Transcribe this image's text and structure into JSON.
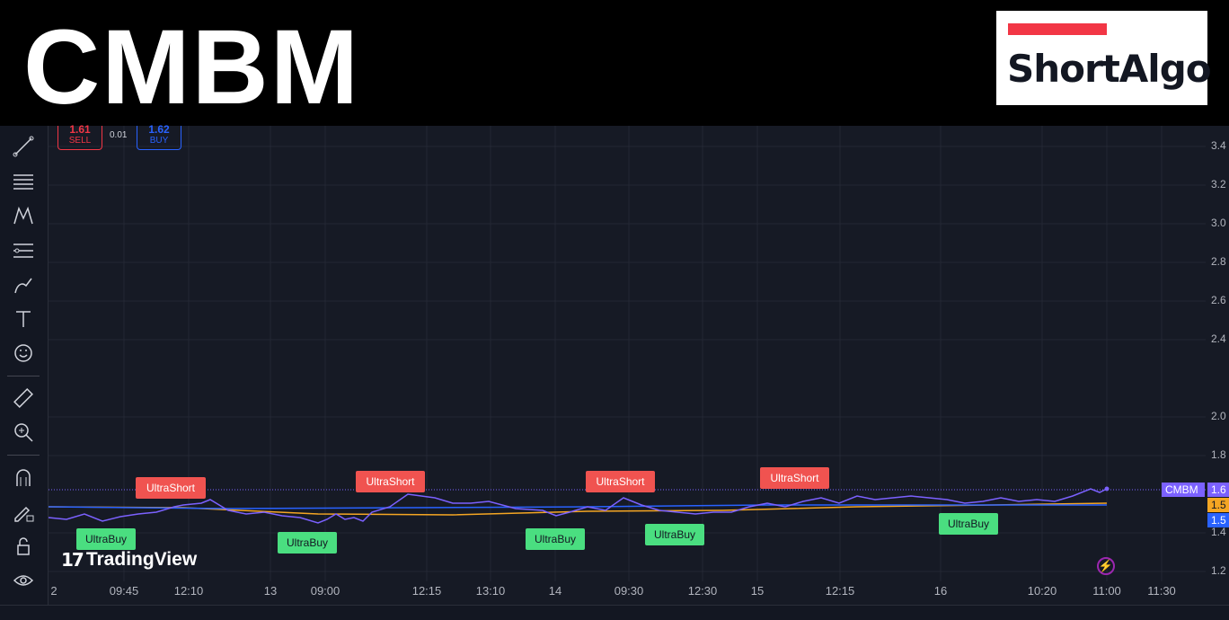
{
  "header": {
    "ticker": "CMBM",
    "logo_text": "ShortAlgo"
  },
  "trade_panel": {
    "sell_price": "1.61",
    "sell_label": "SELL",
    "spread": "0.01",
    "buy_price": "1.62",
    "buy_label": "BUY"
  },
  "toolbar": {
    "tools": [
      "trend-line-icon",
      "horizontal-lines-icon",
      "pattern-icon",
      "fib-icon",
      "brush-icon",
      "text-icon",
      "emoji-icon",
      "ruler-icon",
      "zoom-icon",
      "magnet-icon",
      "lock-draw-icon",
      "lock-icon",
      "eye-icon"
    ]
  },
  "y_axis": {
    "ticks": [
      "3.4",
      "3.2",
      "3.0",
      "2.8",
      "2.6",
      "2.4",
      "2.0",
      "1.8",
      "1.4",
      "1.2"
    ]
  },
  "x_axis": {
    "ticks": [
      "2",
      "09:45",
      "12:10",
      "13",
      "09:00",
      "12:15",
      "13:10",
      "14",
      "09:30",
      "12:30",
      "15",
      "12:15",
      "16",
      "10:20",
      "11:00",
      "11:30"
    ]
  },
  "price_badges": {
    "symbol": "CMBM",
    "symbol_value": "1.6",
    "orange_value": "1.5",
    "blue_value": "1.5"
  },
  "signals": {
    "short_label": "UltraShort",
    "buy_label": "UltraBuy"
  },
  "watermark": {
    "text": "TradingView"
  },
  "colors": {
    "sell": "#f23645",
    "buy": "#2962ff",
    "price_line": "#7b61ff",
    "ma_orange": "#f5a623",
    "ma_blue": "#2962ff",
    "short_bg": "#f05350",
    "buy_bg": "#4ade80"
  }
}
